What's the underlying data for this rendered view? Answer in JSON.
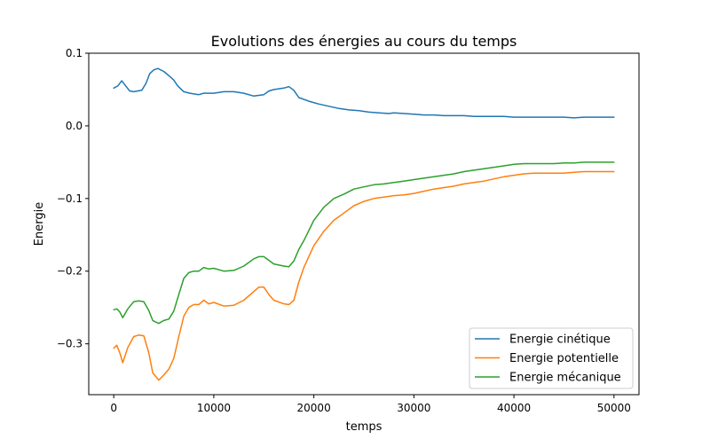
{
  "chart_data": {
    "type": "line",
    "title": "Evolutions des énergies au cours du temps",
    "xlabel": "temps",
    "ylabel": "Energie",
    "xlim": [
      -2500,
      52500
    ],
    "ylim": [
      -0.37,
      0.1
    ],
    "xticks": [
      0,
      10000,
      20000,
      30000,
      40000,
      50000
    ],
    "xtick_labels": [
      "0",
      "10000",
      "20000",
      "30000",
      "40000",
      "50000"
    ],
    "yticks": [
      0.1,
      0.0,
      -0.1,
      -0.2,
      -0.3
    ],
    "ytick_labels": [
      "0.1",
      "0.0",
      "−0.1",
      "−0.2",
      "−0.3"
    ],
    "grid": false,
    "legend_position": "lower-right",
    "series": [
      {
        "name": "Energie cinétique",
        "color": "#1f77b4",
        "x": [
          0,
          400,
          800,
          1200,
          1600,
          2000,
          2800,
          3200,
          3600,
          4000,
          4400,
          5000,
          5600,
          6000,
          6400,
          7000,
          7600,
          8500,
          9000,
          10000,
          11000,
          12000,
          13000,
          14000,
          15000,
          15500,
          16000,
          17000,
          17500,
          18000,
          18500,
          19500,
          20500,
          21500,
          22500,
          23500,
          24500,
          25500,
          26500,
          27500,
          28000,
          29000,
          30000,
          31000,
          32000,
          33000,
          34000,
          35000,
          36000,
          37000,
          38000,
          39000,
          40000,
          41000,
          42000,
          43000,
          44000,
          45000,
          46000,
          47000,
          48000,
          49000,
          50000
        ],
        "y": [
          0.052,
          0.055,
          0.062,
          0.055,
          0.048,
          0.047,
          0.049,
          0.058,
          0.072,
          0.077,
          0.079,
          0.075,
          0.068,
          0.063,
          0.055,
          0.047,
          0.045,
          0.043,
          0.045,
          0.045,
          0.047,
          0.047,
          0.045,
          0.041,
          0.043,
          0.048,
          0.05,
          0.052,
          0.054,
          0.049,
          0.039,
          0.034,
          0.03,
          0.027,
          0.024,
          0.022,
          0.021,
          0.019,
          0.018,
          0.017,
          0.018,
          0.017,
          0.016,
          0.015,
          0.015,
          0.014,
          0.014,
          0.014,
          0.013,
          0.013,
          0.013,
          0.013,
          0.012,
          0.012,
          0.012,
          0.012,
          0.012,
          0.012,
          0.011,
          0.012,
          0.012,
          0.012,
          0.012
        ]
      },
      {
        "name": "Energie potentielle",
        "color": "#ff7f0e",
        "x": [
          0,
          300,
          600,
          900,
          1400,
          2000,
          2500,
          3000,
          3500,
          3900,
          4500,
          5000,
          5500,
          6000,
          6500,
          7000,
          7500,
          8000,
          8500,
          9000,
          9500,
          10000,
          11000,
          12000,
          13000,
          14000,
          14500,
          15000,
          15500,
          16000,
          17000,
          17500,
          18000,
          18500,
          19000,
          20000,
          21000,
          22000,
          23000,
          24000,
          25000,
          26000,
          27000,
          28000,
          29000,
          30000,
          31000,
          32000,
          33000,
          34000,
          35000,
          36000,
          37000,
          38000,
          39000,
          40000,
          41000,
          42000,
          43000,
          44000,
          45000,
          46000,
          47000,
          48000,
          49000,
          50000
        ],
        "y": [
          -0.306,
          -0.302,
          -0.312,
          -0.326,
          -0.305,
          -0.29,
          -0.288,
          -0.289,
          -0.312,
          -0.34,
          -0.35,
          -0.343,
          -0.335,
          -0.32,
          -0.29,
          -0.262,
          -0.25,
          -0.246,
          -0.246,
          -0.24,
          -0.245,
          -0.243,
          -0.248,
          -0.247,
          -0.24,
          -0.228,
          -0.222,
          -0.222,
          -0.232,
          -0.24,
          -0.245,
          -0.246,
          -0.24,
          -0.215,
          -0.195,
          -0.165,
          -0.145,
          -0.13,
          -0.12,
          -0.11,
          -0.104,
          -0.1,
          -0.098,
          -0.096,
          -0.095,
          -0.093,
          -0.09,
          -0.087,
          -0.085,
          -0.083,
          -0.08,
          -0.078,
          -0.076,
          -0.073,
          -0.07,
          -0.068,
          -0.066,
          -0.065,
          -0.065,
          -0.065,
          -0.065,
          -0.064,
          -0.063,
          -0.063,
          -0.063,
          -0.063
        ]
      },
      {
        "name": "Energie mécanique",
        "color": "#2ca02c",
        "x": [
          0,
          300,
          600,
          900,
          1400,
          2000,
          2500,
          3000,
          3500,
          3900,
          4500,
          5000,
          5500,
          6000,
          6500,
          7000,
          7500,
          8000,
          8500,
          9000,
          9500,
          10000,
          11000,
          12000,
          13000,
          14000,
          14500,
          15000,
          15500,
          16000,
          17000,
          17500,
          18000,
          18500,
          19000,
          20000,
          21000,
          22000,
          23000,
          24000,
          25000,
          26000,
          27000,
          28000,
          29000,
          30000,
          31000,
          32000,
          33000,
          34000,
          35000,
          36000,
          37000,
          38000,
          39000,
          40000,
          41000,
          42000,
          43000,
          44000,
          45000,
          46000,
          47000,
          48000,
          49000,
          50000
        ],
        "y": [
          -0.253,
          -0.252,
          -0.256,
          -0.264,
          -0.252,
          -0.242,
          -0.241,
          -0.242,
          -0.254,
          -0.268,
          -0.272,
          -0.268,
          -0.266,
          -0.255,
          -0.232,
          -0.21,
          -0.202,
          -0.2,
          -0.2,
          -0.195,
          -0.197,
          -0.196,
          -0.2,
          -0.199,
          -0.193,
          -0.183,
          -0.18,
          -0.18,
          -0.185,
          -0.19,
          -0.193,
          -0.194,
          -0.186,
          -0.17,
          -0.158,
          -0.13,
          -0.112,
          -0.1,
          -0.094,
          -0.087,
          -0.084,
          -0.081,
          -0.08,
          -0.078,
          -0.076,
          -0.074,
          -0.072,
          -0.07,
          -0.068,
          -0.066,
          -0.063,
          -0.061,
          -0.059,
          -0.057,
          -0.055,
          -0.053,
          -0.052,
          -0.052,
          -0.052,
          -0.052,
          -0.051,
          -0.051,
          -0.05,
          -0.05,
          -0.05,
          -0.05
        ]
      }
    ]
  }
}
